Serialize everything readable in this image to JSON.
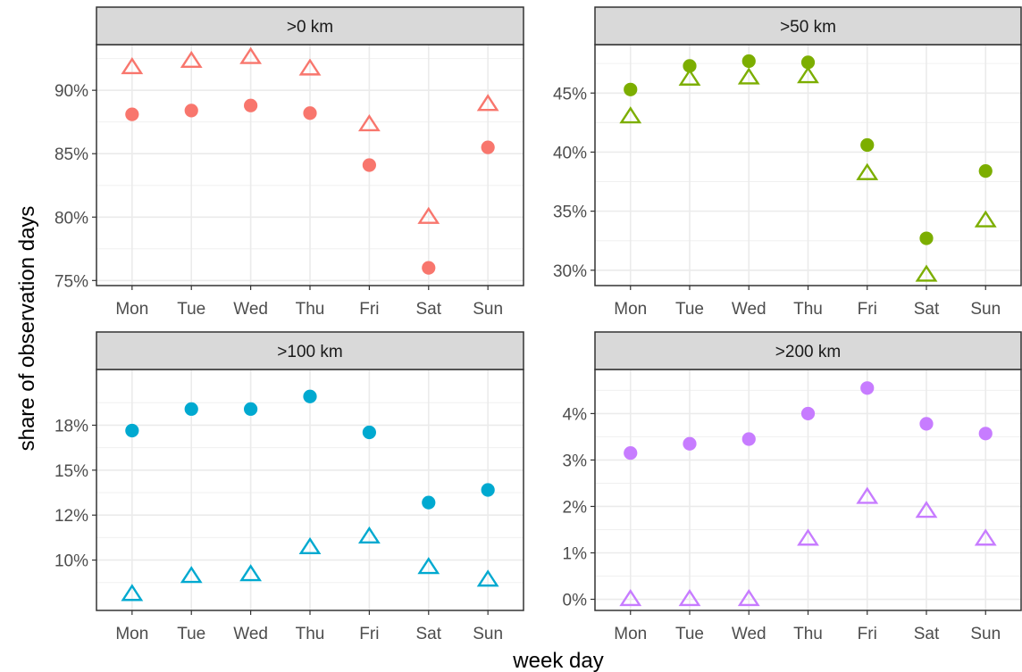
{
  "axes": {
    "xlabel": "week day",
    "ylabel": "share of observation days"
  },
  "chart_data": [
    {
      "type": "scatter",
      "title": ">0 km",
      "color": "#F8766D",
      "categories": [
        "Mon",
        "Tue",
        "Wed",
        "Thu",
        "Fri",
        "Sat",
        "Sun"
      ],
      "series": [
        {
          "shape": "circle",
          "values": [
            88.1,
            88.4,
            88.8,
            88.2,
            84.1,
            76.0,
            85.5
          ]
        },
        {
          "shape": "triangle",
          "values": [
            91.8,
            92.3,
            92.6,
            91.7,
            87.3,
            80.0,
            88.9
          ]
        }
      ],
      "yticks": [
        75,
        80,
        85,
        90
      ],
      "ytick_labels": [
        "75%",
        "80%",
        "85%",
        "90%"
      ],
      "ylim": [
        74.6,
        93.6
      ],
      "grid": true
    },
    {
      "type": "scatter",
      "title": ">50 km",
      "color": "#7CAE00",
      "categories": [
        "Mon",
        "Tue",
        "Wed",
        "Thu",
        "Fri",
        "Sat",
        "Sun"
      ],
      "series": [
        {
          "shape": "circle",
          "values": [
            45.3,
            47.3,
            47.7,
            47.6,
            40.6,
            32.7,
            38.4
          ]
        },
        {
          "shape": "triangle",
          "values": [
            43.0,
            46.2,
            46.3,
            46.4,
            38.2,
            29.6,
            34.2
          ]
        }
      ],
      "yticks": [
        30,
        35,
        40,
        45
      ],
      "ytick_labels": [
        "30%",
        "35%",
        "40%",
        "45%"
      ],
      "ylim": [
        28.7,
        49.1
      ],
      "grid": true
    },
    {
      "type": "scatter",
      "title": ">100 km",
      "color": "#00A9D0",
      "categories": [
        "Mon",
        "Tue",
        "Wed",
        "Thu",
        "Fri",
        "Sat",
        "Sun"
      ],
      "series": [
        {
          "shape": "circle",
          "values": [
            17.2,
            18.4,
            18.4,
            19.1,
            17.1,
            13.2,
            13.9
          ]
        },
        {
          "shape": "triangle",
          "values": [
            8.1,
            9.1,
            9.2,
            10.7,
            11.3,
            9.6,
            8.9
          ]
        }
      ],
      "yticks": [
        10,
        12.5,
        15,
        17.5
      ],
      "ytick_labels": [
        "10%",
        "12%",
        "15%",
        "18%"
      ],
      "ylim": [
        7.2,
        20.6
      ],
      "grid": true
    },
    {
      "type": "scatter",
      "title": ">200 km",
      "color": "#C77CFF",
      "categories": [
        "Mon",
        "Tue",
        "Wed",
        "Thu",
        "Fri",
        "Sat",
        "Sun"
      ],
      "series": [
        {
          "shape": "circle",
          "values": [
            3.15,
            3.35,
            3.45,
            4.0,
            4.55,
            3.78,
            3.57
          ]
        },
        {
          "shape": "triangle",
          "values": [
            0.0,
            0.0,
            0.0,
            1.3,
            2.2,
            1.9,
            1.3
          ]
        }
      ],
      "yticks": [
        0,
        1,
        2,
        3,
        4
      ],
      "ytick_labels": [
        "0%",
        "1%",
        "2%",
        "3%",
        "4%"
      ],
      "ylim": [
        -0.24,
        4.95
      ],
      "grid": true
    }
  ]
}
